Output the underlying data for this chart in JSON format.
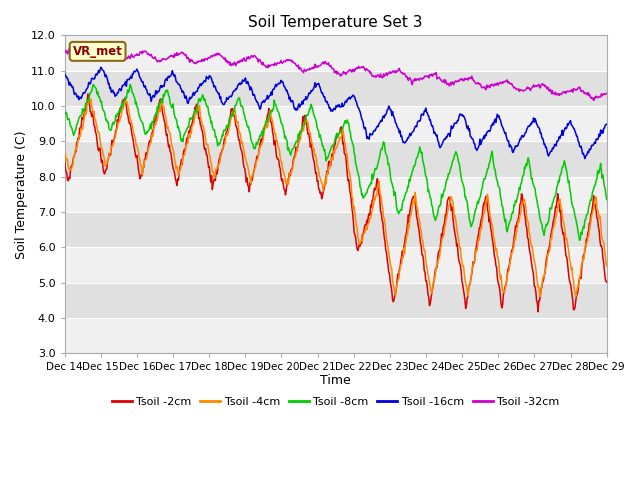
{
  "title": "Soil Temperature Set 3",
  "xlabel": "Time",
  "ylabel": "Soil Temperature (C)",
  "ylim": [
    3.0,
    12.0
  ],
  "yticks": [
    3.0,
    4.0,
    5.0,
    6.0,
    7.0,
    8.0,
    9.0,
    10.0,
    11.0,
    12.0
  ],
  "date_labels": [
    "Dec 14",
    "Dec 15",
    "Dec 16",
    "Dec 17",
    "Dec 18",
    "Dec 19",
    "Dec 20",
    "Dec 21",
    "Dec 22",
    "Dec 23",
    "Dec 24",
    "Dec 25",
    "Dec 26",
    "Dec 27",
    "Dec 28",
    "Dec 29"
  ],
  "vr_met_label": "VR_met",
  "colors": {
    "Tsoil -2cm": "#dd0000",
    "Tsoil -4cm": "#ff8800",
    "Tsoil -8cm": "#00cc00",
    "Tsoil -16cm": "#0000dd",
    "Tsoil -32cm": "#cc00cc"
  },
  "legend_labels": [
    "Tsoil -2cm",
    "Tsoil -4cm",
    "Tsoil -8cm",
    "Tsoil -16cm",
    "Tsoil -32cm"
  ],
  "background_color": "#ffffff",
  "plot_bg_color": "#e8e8e8",
  "band_light": "#f0f0f0",
  "band_dark": "#e0e0e0"
}
